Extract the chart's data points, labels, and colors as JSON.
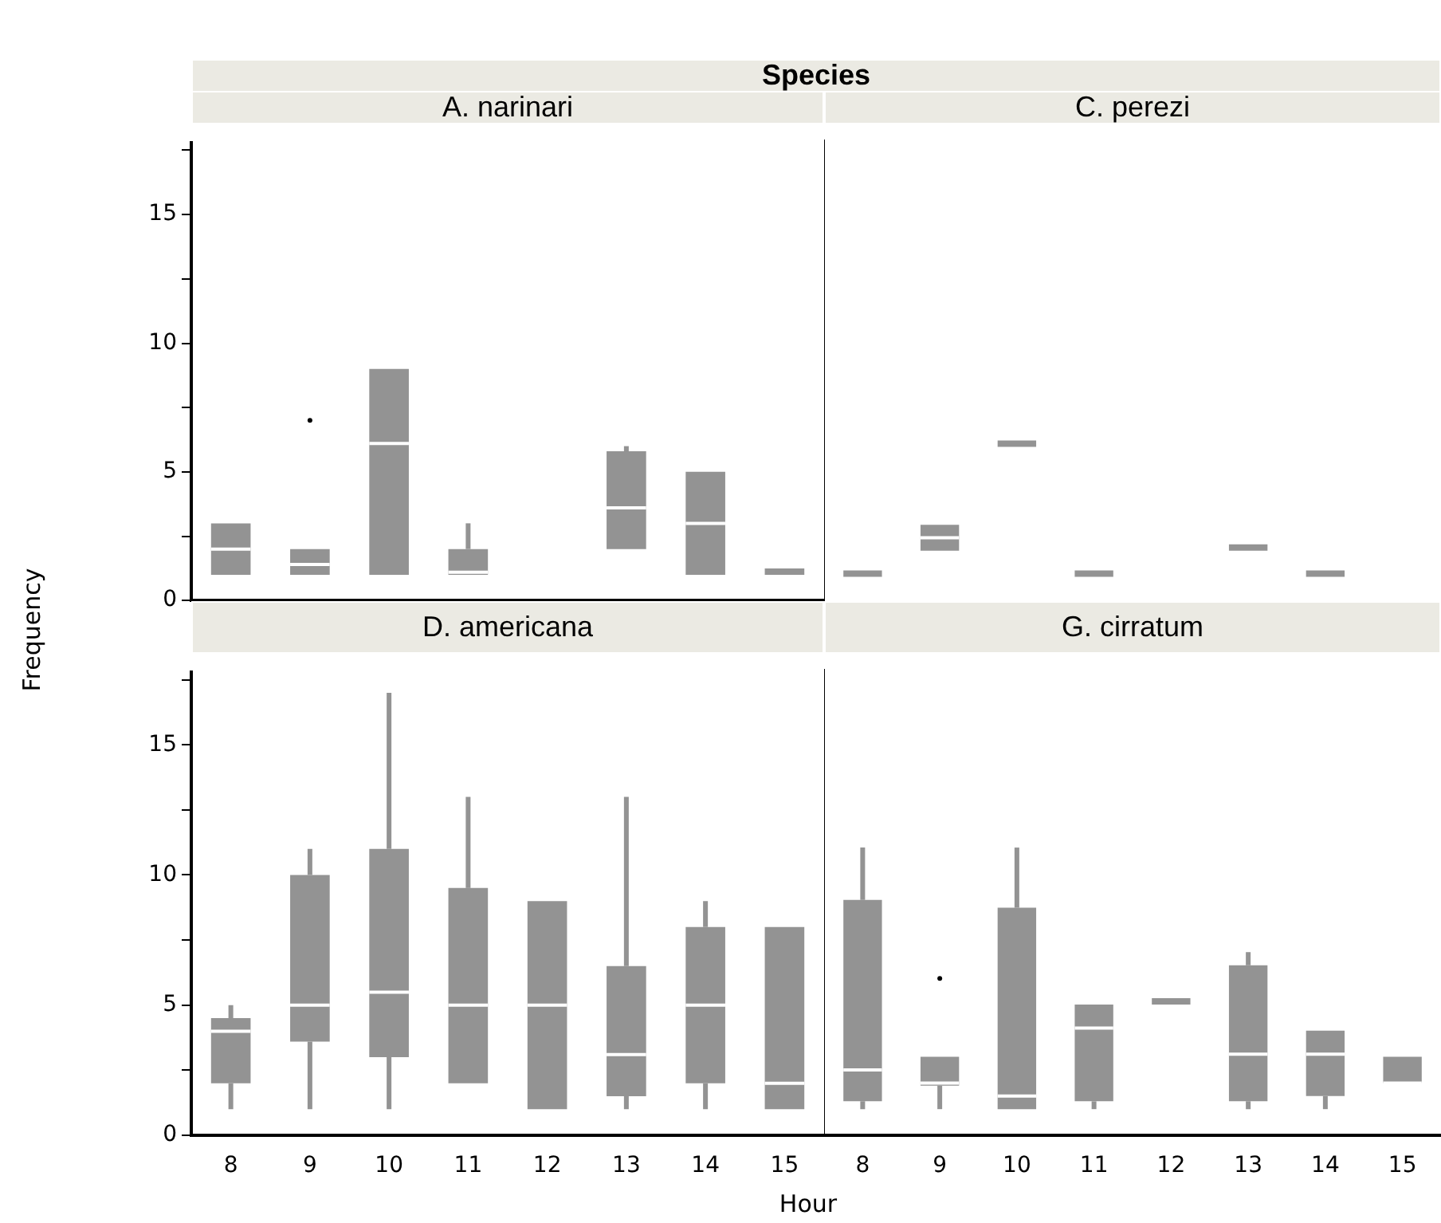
{
  "chart_data": [
    {
      "type": "box",
      "title": "A. narinari",
      "ylabel": "Frequency",
      "annotations": [
        "Species"
      ],
      "categories": [
        "8",
        "9",
        "10",
        "11",
        "12",
        "13",
        "14",
        "15"
      ],
      "color": "#939393",
      "ylim": [
        0,
        17.8
      ],
      "yticks": [
        0,
        {
          "value": 2.5,
          "label": null
        },
        5,
        {
          "value": 7.5,
          "label": null
        },
        10,
        {
          "value": 12.5,
          "label": null
        },
        15,
        {
          "value": 17.5,
          "label": null
        }
      ],
      "tick_labels": "y",
      "boxes": [
        {
          "low": 1,
          "q1": 1,
          "median": 2,
          "q3": 3,
          "high": 3
        },
        {
          "low": 1,
          "q1": 1,
          "median": 1.4,
          "q3": 2,
          "high": 2,
          "outliers": [
            7
          ]
        },
        {
          "low": 1,
          "q1": 1,
          "median": 6.1,
          "q3": 9,
          "high": 9
        },
        {
          "low": 1,
          "q1": 1,
          "median": 1.1,
          "q3": 2,
          "high": 3
        },
        null,
        {
          "low": 2,
          "q1": 2,
          "median": 3.6,
          "q3": 5.8,
          "high": 6
        },
        {
          "low": 1,
          "q1": 1,
          "median": 3,
          "q3": 5,
          "high": 5
        },
        {
          "low": 1,
          "q1": 1,
          "median": 1,
          "q3": 1,
          "high": 1
        }
      ]
    },
    {
      "type": "box",
      "title": "C. perezi",
      "categories": [
        "8",
        "9",
        "10",
        "11",
        "12",
        "13",
        "14",
        "15"
      ],
      "color": "#939393",
      "ylim": [
        0,
        17.8
      ],
      "tick_labels": false,
      "boxes": [
        {
          "low": 1,
          "q1": 1,
          "median": 1,
          "q3": 1,
          "high": 1
        },
        {
          "low": 2,
          "q1": 2,
          "median": 2.5,
          "q3": 3,
          "high": 3
        },
        {
          "low": 6,
          "q1": 6,
          "median": 6,
          "q3": 6,
          "high": 6
        },
        {
          "low": 1,
          "q1": 1,
          "median": 1,
          "q3": 1,
          "high": 1
        },
        null,
        {
          "low": 2,
          "q1": 2,
          "median": 2,
          "q3": 2,
          "high": 2
        },
        {
          "low": 1,
          "q1": 1,
          "median": 1,
          "q3": 1,
          "high": 1
        },
        null
      ]
    },
    {
      "type": "box",
      "title": "D. americana",
      "xlabel": "Hour",
      "categories": [
        "8",
        "9",
        "10",
        "11",
        "12",
        "13",
        "14",
        "15"
      ],
      "color": "#939393",
      "ylim": [
        0,
        17.8
      ],
      "yticks": [
        0,
        {
          "value": 2.5,
          "label": null
        },
        5,
        {
          "value": 7.5,
          "label": null
        },
        10,
        {
          "value": 12.5,
          "label": null
        },
        15,
        {
          "value": 17.5,
          "label": null
        }
      ],
      "boxes": [
        {
          "low": 1,
          "q1": 2,
          "median": 4,
          "q3": 4.5,
          "high": 5
        },
        {
          "low": 1,
          "q1": 3.6,
          "median": 5,
          "q3": 10,
          "high": 11
        },
        {
          "low": 1,
          "q1": 3,
          "median": 5.5,
          "q3": 11,
          "high": 17
        },
        {
          "low": 2,
          "q1": 2,
          "median": 5,
          "q3": 9.5,
          "high": 13
        },
        {
          "low": 1,
          "q1": 1,
          "median": 5,
          "q3": 9,
          "high": 9
        },
        {
          "low": 1,
          "q1": 1.5,
          "median": 3.1,
          "q3": 6.5,
          "high": 13
        },
        {
          "low": 1,
          "q1": 2,
          "median": 5,
          "q3": 8,
          "high": 9
        },
        {
          "low": 1,
          "q1": 1,
          "median": 2,
          "q3": 8,
          "high": 8
        }
      ]
    },
    {
      "type": "box",
      "title": "G. cirratum",
      "categories": [
        "8",
        "9",
        "10",
        "11",
        "12",
        "13",
        "14",
        "15"
      ],
      "color": "#939393",
      "ylim": [
        0,
        17.8
      ],
      "tick_labels": "x",
      "boxes": [
        {
          "low": 1,
          "q1": 1.3,
          "median": 2.5,
          "q3": 9,
          "high": 11
        },
        {
          "low": 1,
          "q1": 1.9,
          "median": 2,
          "q3": 3,
          "high": 3,
          "outliers": [
            6
          ]
        },
        {
          "low": 1,
          "q1": 1,
          "median": 1.5,
          "q3": 8.7,
          "high": 11
        },
        {
          "low": 1,
          "q1": 1.3,
          "median": 4.1,
          "q3": 5,
          "high": 5
        },
        {
          "low": 5,
          "q1": 5,
          "median": 5,
          "q3": 5,
          "high": 5
        },
        {
          "low": 1,
          "q1": 1.3,
          "median": 3.1,
          "q3": 6.5,
          "high": 7
        },
        {
          "low": 1,
          "q1": 1.5,
          "median": 3.1,
          "q3": 4,
          "high": 4
        },
        {
          "low": 2,
          "q1": 2,
          "median": 2,
          "q3": 3,
          "high": 3
        }
      ]
    }
  ]
}
